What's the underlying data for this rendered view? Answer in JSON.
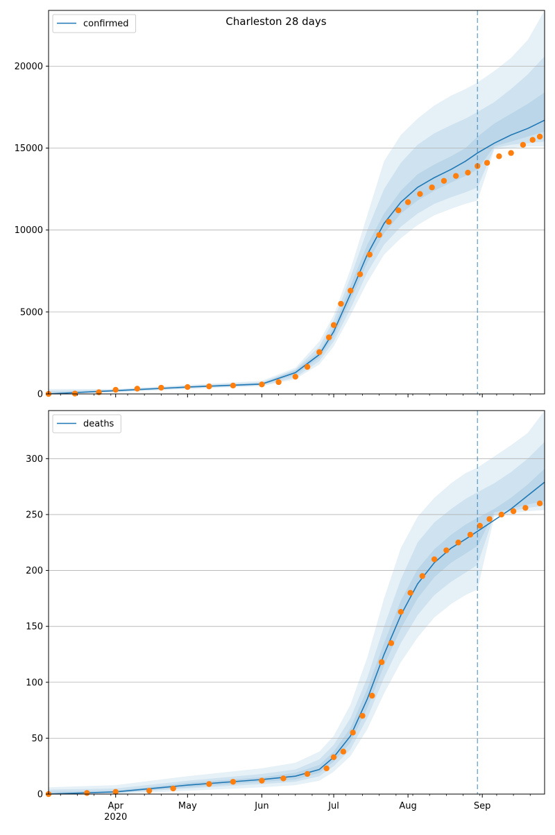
{
  "figure": {
    "title": "Charleston 28 days"
  },
  "x_ticks": {
    "major": [
      {
        "date": "2020-04-01",
        "label": "Apr",
        "sub": "2020"
      },
      {
        "date": "2020-05-01",
        "label": "May",
        "sub": ""
      },
      {
        "date": "2020-06-01",
        "label": "Jun",
        "sub": ""
      },
      {
        "date": "2020-07-01",
        "label": "Jul",
        "sub": ""
      },
      {
        "date": "2020-08-01",
        "label": "Aug",
        "sub": ""
      },
      {
        "date": "2020-09-01",
        "label": "Sep",
        "sub": ""
      }
    ]
  },
  "colors": {
    "model": "#1f77b4",
    "observed": "#ff7f0e",
    "band": "#1f77b4",
    "grid": "#b0b0b0"
  },
  "chart_data": [
    {
      "type": "line",
      "legend": "confirmed",
      "legend_loc": "top-left",
      "xlim": [
        "2020-03-04",
        "2020-09-27"
      ],
      "ylim": [
        0,
        23400
      ],
      "y_ticks": [
        0,
        5000,
        10000,
        15000,
        20000
      ],
      "grid": "horizontal",
      "forecast_start": "2020-08-30",
      "model": {
        "x": [
          "2020-03-04",
          "2020-04-01",
          "2020-05-01",
          "2020-06-01",
          "2020-06-15",
          "2020-06-25",
          "2020-07-01",
          "2020-07-08",
          "2020-07-15",
          "2020-07-22",
          "2020-07-29",
          "2020-08-05",
          "2020-08-12",
          "2020-08-19",
          "2020-08-25",
          "2020-08-30",
          "2020-09-06",
          "2020-09-13",
          "2020-09-20",
          "2020-09-27"
        ],
        "y": [
          0,
          200,
          420,
          600,
          1300,
          2400,
          3800,
          6100,
          8500,
          10400,
          11700,
          12600,
          13200,
          13700,
          14200,
          14700,
          15300,
          15800,
          16200,
          16700
        ]
      },
      "bands": [
        {
          "lower": [
            0,
            100,
            300,
            480,
            900,
            1800,
            2900,
            4800,
            6800,
            8500,
            9500,
            10300,
            10900,
            11300,
            11600,
            11800,
            14900,
            15000,
            15100,
            15100
          ],
          "upper": [
            300,
            300,
            550,
            800,
            1600,
            3200,
            4800,
            7600,
            10900,
            14200,
            15800,
            16800,
            17600,
            18200,
            18600,
            19000,
            19700,
            20500,
            21600,
            23400
          ]
        },
        {
          "lower": [
            0,
            130,
            340,
            520,
            1000,
            2000,
            3200,
            5200,
            7400,
            9100,
            10200,
            11000,
            11600,
            12000,
            12300,
            12600,
            15000,
            15200,
            15300,
            15400
          ],
          "upper": [
            200,
            270,
            500,
            720,
            1500,
            2900,
            4500,
            7100,
            10000,
            12500,
            14100,
            15200,
            15900,
            16400,
            16800,
            17200,
            17800,
            18600,
            19500,
            20600
          ]
        },
        {
          "lower": [
            0,
            160,
            380,
            560,
            1150,
            2200,
            3500,
            5700,
            8000,
            9800,
            11000,
            11800,
            12400,
            12900,
            13300,
            13700,
            15100,
            15400,
            15700,
            16000
          ],
          "upper": [
            100,
            240,
            460,
            660,
            1450,
            2600,
            4100,
            6600,
            9100,
            11000,
            12400,
            13400,
            14000,
            14500,
            15000,
            15700,
            16500,
            17100,
            17700,
            18400
          ]
        }
      ],
      "observed": {
        "x": [
          "2020-03-04",
          "2020-03-15",
          "2020-03-25",
          "2020-04-01",
          "2020-04-10",
          "2020-04-20",
          "2020-05-01",
          "2020-05-10",
          "2020-05-20",
          "2020-06-01",
          "2020-06-08",
          "2020-06-15",
          "2020-06-20",
          "2020-06-25",
          "2020-06-29",
          "2020-07-01",
          "2020-07-04",
          "2020-07-08",
          "2020-07-12",
          "2020-07-16",
          "2020-07-20",
          "2020-07-24",
          "2020-07-28",
          "2020-08-01",
          "2020-08-06",
          "2020-08-11",
          "2020-08-16",
          "2020-08-21",
          "2020-08-26",
          "2020-08-30",
          "2020-09-03",
          "2020-09-08",
          "2020-09-13",
          "2020-09-18",
          "2020-09-22",
          "2020-09-25"
        ],
        "y": [
          0,
          20,
          100,
          250,
          320,
          380,
          420,
          460,
          510,
          580,
          720,
          1050,
          1650,
          2550,
          3450,
          4200,
          5500,
          6300,
          7300,
          8500,
          9700,
          10500,
          11200,
          11700,
          12200,
          12600,
          13000,
          13300,
          13500,
          13900,
          14100,
          14500,
          14700,
          15200,
          15500,
          15700
        ]
      }
    },
    {
      "type": "line",
      "legend": "deaths",
      "legend_loc": "top-left",
      "xlim": [
        "2020-03-04",
        "2020-09-27"
      ],
      "ylim": [
        0,
        343
      ],
      "y_ticks": [
        0,
        50,
        100,
        150,
        200,
        250,
        300
      ],
      "grid": "horizontal",
      "forecast_start": "2020-08-30",
      "model": {
        "x": [
          "2020-03-04",
          "2020-04-01",
          "2020-05-01",
          "2020-06-01",
          "2020-06-15",
          "2020-06-25",
          "2020-07-01",
          "2020-07-08",
          "2020-07-15",
          "2020-07-22",
          "2020-07-29",
          "2020-08-05",
          "2020-08-12",
          "2020-08-19",
          "2020-08-25",
          "2020-08-30",
          "2020-09-06",
          "2020-09-13",
          "2020-09-20",
          "2020-09-27"
        ],
        "y": [
          0,
          2,
          8,
          13,
          16,
          22,
          33,
          52,
          85,
          125,
          160,
          188,
          207,
          220,
          228,
          235,
          245,
          255,
          267,
          279
        ]
      },
      "bands": [
        {
          "lower": [
            0,
            0,
            3,
            6,
            8,
            12,
            20,
            34,
            58,
            90,
            118,
            140,
            158,
            170,
            178,
            183,
            248,
            251,
            253,
            254
          ],
          "upper": [
            6,
            8,
            16,
            23,
            28,
            38,
            52,
            80,
            122,
            175,
            220,
            248,
            265,
            278,
            287,
            292,
            302,
            312,
            323,
            343
          ]
        },
        {
          "lower": [
            0,
            1,
            5,
            9,
            11,
            16,
            25,
            40,
            68,
            104,
            135,
            160,
            178,
            190,
            198,
            205,
            250,
            253,
            256,
            258
          ],
          "upper": [
            4,
            5,
            12,
            18,
            22,
            31,
            44,
            68,
            104,
            150,
            192,
            225,
            243,
            255,
            264,
            270,
            278,
            288,
            300,
            315
          ]
        },
        {
          "lower": [
            0,
            1,
            6,
            11,
            13,
            19,
            29,
            46,
            77,
            115,
            148,
            175,
            194,
            207,
            215,
            222,
            252,
            255,
            259,
            262
          ],
          "upper": [
            2,
            3,
            10,
            15,
            19,
            26,
            38,
            59,
            94,
            135,
            173,
            201,
            219,
            232,
            241,
            247,
            255,
            265,
            277,
            291
          ]
        }
      ],
      "observed": {
        "x": [
          "2020-03-04",
          "2020-03-20",
          "2020-04-01",
          "2020-04-15",
          "2020-04-25",
          "2020-05-10",
          "2020-05-20",
          "2020-06-01",
          "2020-06-10",
          "2020-06-20",
          "2020-06-28",
          "2020-07-01",
          "2020-07-05",
          "2020-07-09",
          "2020-07-13",
          "2020-07-17",
          "2020-07-21",
          "2020-07-25",
          "2020-07-29",
          "2020-08-02",
          "2020-08-07",
          "2020-08-12",
          "2020-08-17",
          "2020-08-22",
          "2020-08-27",
          "2020-08-31",
          "2020-09-04",
          "2020-09-09",
          "2020-09-14",
          "2020-09-19",
          "2020-09-25"
        ],
        "y": [
          0,
          1,
          2,
          3,
          5,
          9,
          11,
          12,
          14,
          18,
          23,
          33,
          38,
          55,
          70,
          88,
          118,
          135,
          163,
          180,
          195,
          210,
          218,
          225,
          232,
          240,
          246,
          250,
          253,
          256,
          260
        ]
      }
    }
  ]
}
